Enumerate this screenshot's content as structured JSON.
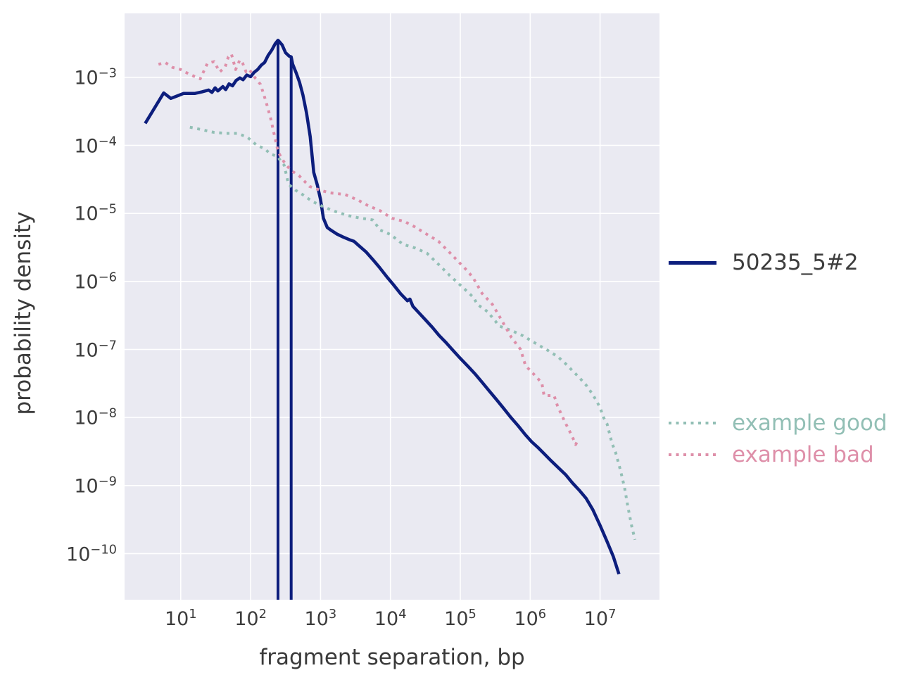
{
  "figure": {
    "background": "#ffffff",
    "plot_background": "#eaeaf2",
    "grid_color": "#ffffff",
    "tick_color": "#3c3c3c",
    "label_color": "#3a3a3a",
    "tick_label_base": "10"
  },
  "chart_data": {
    "type": "line",
    "title": "",
    "xlabel": "fragment separation, bp",
    "ylabel": "probability density",
    "x_scale": "log",
    "y_scale": "log",
    "grid": true,
    "legend_position": "right",
    "xlim": [
      1.57,
      70800000
    ],
    "ylim": [
      2.1e-11,
      0.0087
    ],
    "x_tick_exponents": [
      1,
      2,
      3,
      4,
      5,
      6,
      7
    ],
    "y_tick_exponents": [
      -3,
      -4,
      -5,
      -6,
      -7,
      -8,
      -9,
      -10
    ],
    "series": [
      {
        "name": "50235_5#2",
        "color": "#0d1e7d",
        "label_color": "#3c3c3c",
        "style": "solid",
        "line_width": 4.5,
        "spikes": [
          {
            "x": 246,
            "top": 0.0036
          },
          {
            "x": 380,
            "top": 0.002
          }
        ],
        "points": [
          [
            3.1,
            0.00021
          ],
          [
            5.7,
            0.00059
          ],
          [
            7.2,
            0.00049
          ],
          [
            11,
            0.00058
          ],
          [
            16,
            0.00058
          ],
          [
            20,
            0.00061
          ],
          [
            25,
            0.00065
          ],
          [
            28,
            0.0006
          ],
          [
            31,
            0.0007
          ],
          [
            34,
            0.00063
          ],
          [
            40,
            0.00073
          ],
          [
            44,
            0.00066
          ],
          [
            49,
            0.0008
          ],
          [
            55,
            0.00075
          ],
          [
            62,
            0.0009
          ],
          [
            70,
            0.00098
          ],
          [
            78,
            0.00092
          ],
          [
            88,
            0.00108
          ],
          [
            100,
            0.00102
          ],
          [
            112,
            0.00118
          ],
          [
            126,
            0.0013
          ],
          [
            141,
            0.0015
          ],
          [
            158,
            0.00165
          ],
          [
            178,
            0.0021
          ],
          [
            200,
            0.0025
          ],
          [
            224,
            0.0031
          ],
          [
            246,
            0.0035
          ],
          [
            260,
            0.0033
          ],
          [
            282,
            0.003
          ],
          [
            316,
            0.0023
          ],
          [
            355,
            0.00205
          ],
          [
            380,
            0.002
          ],
          [
            400,
            0.00155
          ],
          [
            450,
            0.00115
          ],
          [
            500,
            0.00085
          ],
          [
            560,
            0.00055
          ],
          [
            630,
            0.0003
          ],
          [
            710,
            0.000135
          ],
          [
            800,
            4e-05
          ],
          [
            900,
            2.6e-05
          ],
          [
            1000,
            1.6e-05
          ],
          [
            1100,
            8.5e-06
          ],
          [
            1250,
            6.2e-06
          ],
          [
            1400,
            5.7e-06
          ],
          [
            1700,
            5e-06
          ],
          [
            2100,
            4.5e-06
          ],
          [
            2600,
            4.1e-06
          ],
          [
            3000,
            3.9e-06
          ],
          [
            3600,
            3.3e-06
          ],
          [
            4500,
            2.7e-06
          ],
          [
            5600,
            2.1e-06
          ],
          [
            7000,
            1.6e-06
          ],
          [
            9000,
            1.15e-06
          ],
          [
            11000,
            9e-07
          ],
          [
            14000,
            6.6e-07
          ],
          [
            17500,
            5.2e-07
          ],
          [
            19000,
            5.5e-07
          ],
          [
            21000,
            4.3e-07
          ],
          [
            26000,
            3.4e-07
          ],
          [
            32000,
            2.7e-07
          ],
          [
            40000,
            2.1e-07
          ],
          [
            50000,
            1.6e-07
          ],
          [
            63000,
            1.25e-07
          ],
          [
            80000,
            9.5e-08
          ],
          [
            100000,
            7.4e-08
          ],
          [
            130000,
            5.6e-08
          ],
          [
            165000,
            4.3e-08
          ],
          [
            210000,
            3.2e-08
          ],
          [
            265000,
            2.4e-08
          ],
          [
            335000,
            1.8e-08
          ],
          [
            420000,
            1.35e-08
          ],
          [
            530000,
            1e-08
          ],
          [
            670000,
            7.6e-09
          ],
          [
            850000,
            5.6e-09
          ],
          [
            1050000,
            4.4e-09
          ],
          [
            1300000,
            3.6e-09
          ],
          [
            1600000,
            2.9e-09
          ],
          [
            2000000,
            2.3e-09
          ],
          [
            2500000,
            1.85e-09
          ],
          [
            3200000,
            1.45e-09
          ],
          [
            4000000,
            1.1e-09
          ],
          [
            5000000,
            8.6e-10
          ],
          [
            6300000,
            6.5e-10
          ],
          [
            7900000,
            4.4e-10
          ],
          [
            10000000,
            2.6e-10
          ],
          [
            12600000,
            1.5e-10
          ],
          [
            15500000,
            9e-11
          ],
          [
            18600000,
            5e-11
          ]
        ]
      },
      {
        "name": "example good",
        "color": "#92bfb5",
        "label_color": "#92bfb5",
        "style": "dotted",
        "line_width": 4,
        "points": [
          [
            13.5,
            0.000185
          ],
          [
            20,
            0.00017
          ],
          [
            30,
            0.000155
          ],
          [
            45,
            0.00015
          ],
          [
            66,
            0.00015
          ],
          [
            91,
            0.00013
          ],
          [
            120,
            0.000102
          ],
          [
            162,
            8.8e-05
          ],
          [
            190,
            7.5e-05
          ],
          [
            240,
            6.9e-05
          ],
          [
            302,
            5.1e-05
          ],
          [
            347,
            2.7e-05
          ],
          [
            437,
            2.2e-05
          ],
          [
            550,
            1.9e-05
          ],
          [
            760,
            1.5e-05
          ],
          [
            1100,
            1.25e-05
          ],
          [
            1650,
            1.06e-05
          ],
          [
            2450,
            9.3e-06
          ],
          [
            3530,
            8.6e-06
          ],
          [
            5600,
            8e-06
          ],
          [
            7100,
            5.7e-06
          ],
          [
            10000,
            4.9e-06
          ],
          [
            15200,
            3.5e-06
          ],
          [
            22500,
            3.1e-06
          ],
          [
            33300,
            2.6e-06
          ],
          [
            51000,
            1.7e-06
          ],
          [
            72000,
            1.2e-06
          ],
          [
            107000,
            8.3e-07
          ],
          [
            155000,
            5.8e-07
          ],
          [
            175000,
            4.6e-07
          ],
          [
            245000,
            3.6e-07
          ],
          [
            364000,
            2.2e-07
          ],
          [
            540000,
            1.9e-07
          ],
          [
            780000,
            1.6e-07
          ],
          [
            1150000,
            1.26e-07
          ],
          [
            1700000,
            1e-07
          ],
          [
            2500000,
            7.8e-08
          ],
          [
            3200000,
            6.2e-08
          ],
          [
            4000000,
            4.9e-08
          ],
          [
            5000000,
            3.9e-08
          ],
          [
            6300000,
            3e-08
          ],
          [
            7800000,
            2.2e-08
          ],
          [
            8900000,
            1.75e-08
          ],
          [
            10000000,
            1.4e-08
          ],
          [
            11200000,
            1e-08
          ],
          [
            12600000,
            8e-09
          ],
          [
            14800000,
            4.2e-09
          ],
          [
            16600000,
            3.1e-09
          ],
          [
            19500000,
            1.7e-09
          ],
          [
            22400000,
            9.3e-10
          ],
          [
            25000000,
            4.9e-10
          ],
          [
            28200000,
            2.6e-10
          ],
          [
            31600000,
            1.6e-10
          ]
        ]
      },
      {
        "name": "example bad",
        "color": "#de8fa9",
        "label_color": "#de8fa9",
        "style": "dotted",
        "line_width": 4,
        "points": [
          [
            4.8,
            0.00155
          ],
          [
            6.0,
            0.00165
          ],
          [
            7.6,
            0.0014
          ],
          [
            10,
            0.0013
          ],
          [
            13.5,
            0.0011
          ],
          [
            19,
            0.00095
          ],
          [
            24,
            0.0016
          ],
          [
            30,
            0.0017
          ],
          [
            36,
            0.0012
          ],
          [
            43,
            0.0014
          ],
          [
            48,
            0.002
          ],
          [
            53,
            0.0022
          ],
          [
            61,
            0.0013
          ],
          [
            70,
            0.0018
          ],
          [
            77,
            0.0016
          ],
          [
            86,
            0.0012
          ],
          [
            95,
            0.0013
          ],
          [
            105,
            0.00115
          ],
          [
            114,
            0.001
          ],
          [
            126,
            0.00088
          ],
          [
            138,
            0.00079
          ],
          [
            155,
            0.00055
          ],
          [
            174,
            0.00037
          ],
          [
            195,
            0.00024
          ],
          [
            219,
            0.00014
          ],
          [
            246,
            8.2e-05
          ],
          [
            276,
            6.5e-05
          ],
          [
            324,
            5.1e-05
          ],
          [
            389,
            4.2e-05
          ],
          [
            490,
            3.6e-05
          ],
          [
            692,
            2.5e-05
          ],
          [
            980,
            2.2e-05
          ],
          [
            1390,
            2e-05
          ],
          [
            2230,
            1.9e-05
          ],
          [
            3530,
            1.55e-05
          ],
          [
            4770,
            1.3e-05
          ],
          [
            7080,
            1.1e-05
          ],
          [
            10500,
            8.5e-06
          ],
          [
            15900,
            7.6e-06
          ],
          [
            22500,
            6.3e-06
          ],
          [
            35800,
            4.7e-06
          ],
          [
            48600,
            3.9e-06
          ],
          [
            72000,
            2.6e-06
          ],
          [
            107000,
            1.7e-06
          ],
          [
            129000,
            1.4e-06
          ],
          [
            155000,
            1.1e-06
          ],
          [
            204000,
            6.7e-07
          ],
          [
            288000,
            4.6e-07
          ],
          [
            390000,
            2.7e-07
          ],
          [
            539000,
            1.5e-07
          ],
          [
            729000,
            1e-07
          ],
          [
            856000,
            5.8e-08
          ],
          [
            1240000,
            3.9e-08
          ],
          [
            1470000,
            3.2e-08
          ],
          [
            1580000,
            2.1e-08
          ],
          [
            2200000,
            2.1e-08
          ],
          [
            2450000,
            1.5e-08
          ],
          [
            3160000,
            8.5e-09
          ],
          [
            3980000,
            5.3e-09
          ],
          [
            4470000,
            4e-09
          ],
          [
            4900000,
            4.8e-09
          ]
        ]
      }
    ]
  }
}
